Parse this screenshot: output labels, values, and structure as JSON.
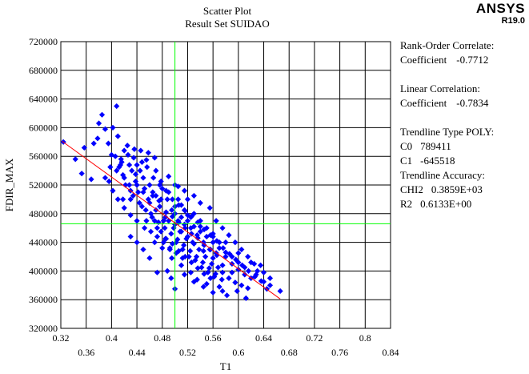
{
  "header": {
    "title": "Scatter Plot",
    "subtitle": "Result Set SUIDAO",
    "logo": "ANSYS",
    "version": "R19.0"
  },
  "stats": {
    "rank_title": "Rank-Order Correlate:",
    "rank_label": "Coefficient",
    "rank_value": "-0.7712",
    "linear_title": "Linear Correlation:",
    "linear_label": "Coefficient",
    "linear_value": "-0.7834",
    "trend_title": "Trendline Type POLY:",
    "c0_label": "C0",
    "c0_value": "789411",
    "c1_label": "C1",
    "c1_value": "-645518",
    "accuracy_title": "Trendline Accuracy:",
    "chi2_label": "CHI2",
    "chi2_value": "0.3859E+03",
    "r2_label": "R2",
    "r2_value": "0.6133E+00"
  },
  "chart_data": {
    "type": "scatter",
    "xlabel": "T1",
    "ylabel": "FDIR_MAX",
    "xlim": [
      0.32,
      0.84
    ],
    "ylim": [
      320000,
      720000
    ],
    "x_ticks_upper": [
      0.32,
      0.4,
      0.48,
      0.56,
      0.64,
      0.72,
      0.8
    ],
    "x_ticks_lower": [
      0.36,
      0.44,
      0.52,
      0.6,
      0.68,
      0.76,
      0.84
    ],
    "y_ticks": [
      320000,
      360000,
      400000,
      440000,
      480000,
      520000,
      560000,
      600000,
      640000,
      680000,
      720000
    ],
    "grid": true,
    "marker_color": "#0000ff",
    "trend_color": "#ff0000",
    "mean_line_color": "#00ff00",
    "mean_x": 0.5,
    "mean_y": 466000,
    "trendline": {
      "x": [
        0.322,
        0.666
      ],
      "y": [
        581000,
        361000
      ]
    },
    "points": [
      [
        0.324,
        580000
      ],
      [
        0.343,
        556000
      ],
      [
        0.357,
        572000
      ],
      [
        0.353,
        536000
      ],
      [
        0.368,
        528000
      ],
      [
        0.372,
        578000
      ],
      [
        0.378,
        585000
      ],
      [
        0.38,
        606000
      ],
      [
        0.385,
        618000
      ],
      [
        0.39,
        598000
      ],
      [
        0.395,
        578000
      ],
      [
        0.4,
        562000
      ],
      [
        0.402,
        600000
      ],
      [
        0.408,
        630000
      ],
      [
        0.41,
        588000
      ],
      [
        0.412,
        545000
      ],
      [
        0.415,
        556000
      ],
      [
        0.418,
        534000
      ],
      [
        0.42,
        568000
      ],
      [
        0.422,
        520000
      ],
      [
        0.425,
        575000
      ],
      [
        0.428,
        548000
      ],
      [
        0.43,
        500000
      ],
      [
        0.432,
        540000
      ],
      [
        0.435,
        558000
      ],
      [
        0.438,
        525000
      ],
      [
        0.44,
        548000
      ],
      [
        0.442,
        510000
      ],
      [
        0.445,
        540000
      ],
      [
        0.448,
        490000
      ],
      [
        0.45,
        530000
      ],
      [
        0.452,
        515000
      ],
      [
        0.455,
        555000
      ],
      [
        0.458,
        500000
      ],
      [
        0.46,
        520000
      ],
      [
        0.462,
        480000
      ],
      [
        0.465,
        510000
      ],
      [
        0.468,
        470000
      ],
      [
        0.47,
        540000
      ],
      [
        0.472,
        460000
      ],
      [
        0.475,
        498000
      ],
      [
        0.478,
        455000
      ],
      [
        0.48,
        515000
      ],
      [
        0.482,
        470000
      ],
      [
        0.485,
        445000
      ],
      [
        0.488,
        500000
      ],
      [
        0.49,
        470000
      ],
      [
        0.492,
        430000
      ],
      [
        0.495,
        485000
      ],
      [
        0.498,
        460000
      ],
      [
        0.5,
        520000
      ],
      [
        0.502,
        440000
      ],
      [
        0.505,
        470000
      ],
      [
        0.508,
        455000
      ],
      [
        0.51,
        492000
      ],
      [
        0.512,
        430000
      ],
      [
        0.515,
        465000
      ],
      [
        0.518,
        445000
      ],
      [
        0.52,
        500000
      ],
      [
        0.522,
        420000
      ],
      [
        0.525,
        460000
      ],
      [
        0.528,
        440000
      ],
      [
        0.53,
        480000
      ],
      [
        0.532,
        415000
      ],
      [
        0.535,
        450000
      ],
      [
        0.538,
        430000
      ],
      [
        0.54,
        470000
      ],
      [
        0.542,
        405000
      ],
      [
        0.545,
        440000
      ],
      [
        0.548,
        420000
      ],
      [
        0.55,
        460000
      ],
      [
        0.552,
        398000
      ],
      [
        0.555,
        430000
      ],
      [
        0.558,
        410000
      ],
      [
        0.56,
        448000
      ],
      [
        0.562,
        392000
      ],
      [
        0.565,
        425000
      ],
      [
        0.568,
        405000
      ],
      [
        0.57,
        440000
      ],
      [
        0.575,
        398000
      ],
      [
        0.58,
        420000
      ],
      [
        0.585,
        390000
      ],
      [
        0.59,
        410000
      ],
      [
        0.595,
        384000
      ],
      [
        0.6,
        402000
      ],
      [
        0.605,
        380000
      ],
      [
        0.61,
        395000
      ],
      [
        0.615,
        376000
      ],
      [
        0.62,
        390000
      ],
      [
        0.628,
        395000
      ],
      [
        0.635,
        408000
      ],
      [
        0.64,
        385000
      ],
      [
        0.645,
        375000
      ],
      [
        0.65,
        390000
      ],
      [
        0.666,
        372000
      ],
      [
        0.612,
        362000
      ],
      [
        0.598,
        372000
      ],
      [
        0.582,
        366000
      ],
      [
        0.57,
        378000
      ],
      [
        0.55,
        382000
      ],
      [
        0.535,
        388000
      ],
      [
        0.488,
        400000
      ],
      [
        0.472,
        398000
      ],
      [
        0.46,
        418000
      ],
      [
        0.45,
        430000
      ],
      [
        0.44,
        440000
      ],
      [
        0.43,
        448000
      ],
      [
        0.455,
        470000
      ],
      [
        0.465,
        505000
      ],
      [
        0.478,
        525000
      ],
      [
        0.49,
        532000
      ],
      [
        0.505,
        518000
      ],
      [
        0.515,
        512000
      ],
      [
        0.53,
        505000
      ],
      [
        0.54,
        495000
      ],
      [
        0.555,
        488000
      ],
      [
        0.565,
        470000
      ],
      [
        0.575,
        460000
      ],
      [
        0.585,
        450000
      ],
      [
        0.595,
        440000
      ],
      [
        0.605,
        430000
      ],
      [
        0.615,
        420000
      ],
      [
        0.625,
        410000
      ],
      [
        0.468,
        440000
      ],
      [
        0.48,
        432000
      ],
      [
        0.495,
        418000
      ],
      [
        0.51,
        408000
      ],
      [
        0.525,
        398000
      ],
      [
        0.418,
        500000
      ],
      [
        0.428,
        520000
      ],
      [
        0.438,
        535000
      ],
      [
        0.448,
        552000
      ],
      [
        0.458,
        565000
      ],
      [
        0.468,
        558000
      ],
      [
        0.47,
        485000
      ],
      [
        0.485,
        475000
      ],
      [
        0.5,
        465000
      ],
      [
        0.51,
        455000
      ],
      [
        0.52,
        448000
      ],
      [
        0.53,
        438000
      ],
      [
        0.545,
        428000
      ],
      [
        0.56,
        418000
      ],
      [
        0.575,
        408000
      ],
      [
        0.59,
        398000
      ],
      [
        0.476,
        490000
      ],
      [
        0.486,
        482000
      ],
      [
        0.496,
        476000
      ],
      [
        0.506,
        468000
      ],
      [
        0.516,
        460000
      ],
      [
        0.526,
        452000
      ],
      [
        0.536,
        446000
      ],
      [
        0.546,
        436000
      ],
      [
        0.556,
        430000
      ],
      [
        0.566,
        422000
      ],
      [
        0.46,
        495000
      ],
      [
        0.47,
        505000
      ],
      [
        0.45,
        510000
      ],
      [
        0.44,
        520000
      ],
      [
        0.434,
        505000
      ],
      [
        0.444,
        495000
      ],
      [
        0.454,
        485000
      ],
      [
        0.464,
        475000
      ],
      [
        0.474,
        468000
      ],
      [
        0.484,
        460000
      ],
      [
        0.494,
        452000
      ],
      [
        0.504,
        444000
      ],
      [
        0.514,
        436000
      ],
      [
        0.524,
        428000
      ],
      [
        0.534,
        420000
      ],
      [
        0.544,
        412000
      ],
      [
        0.554,
        404000
      ],
      [
        0.564,
        396000
      ],
      [
        0.574,
        388000
      ],
      [
        0.43,
        512000
      ],
      [
        0.42,
        530000
      ],
      [
        0.414,
        548000
      ],
      [
        0.406,
        560000
      ],
      [
        0.398,
        545000
      ],
      [
        0.39,
        530000
      ],
      [
        0.5,
        490000
      ],
      [
        0.52,
        478000
      ],
      [
        0.54,
        462000
      ],
      [
        0.56,
        452000
      ],
      [
        0.58,
        440000
      ],
      [
        0.6,
        425000
      ],
      [
        0.62,
        412000
      ],
      [
        0.63,
        400000
      ],
      [
        0.64,
        398000
      ],
      [
        0.65,
        380000
      ],
      [
        0.505,
        500000
      ],
      [
        0.515,
        485000
      ],
      [
        0.525,
        475000
      ],
      [
        0.49,
        510000
      ],
      [
        0.478,
        500000
      ],
      [
        0.5,
        480000
      ],
      [
        0.51,
        475000
      ],
      [
        0.52,
        470000
      ],
      [
        0.53,
        462000
      ],
      [
        0.54,
        455000
      ],
      [
        0.55,
        448000
      ],
      [
        0.56,
        440000
      ],
      [
        0.57,
        432000
      ],
      [
        0.58,
        426000
      ],
      [
        0.59,
        420000
      ],
      [
        0.6,
        412000
      ],
      [
        0.61,
        405000
      ],
      [
        0.486,
        445000
      ],
      [
        0.496,
        438000
      ],
      [
        0.506,
        428000
      ],
      [
        0.516,
        420000
      ],
      [
        0.526,
        412000
      ],
      [
        0.536,
        404000
      ],
      [
        0.546,
        396000
      ],
      [
        0.556,
        390000
      ],
      [
        0.452,
        460000
      ],
      [
        0.462,
        455000
      ],
      [
        0.472,
        448000
      ],
      [
        0.482,
        440000
      ],
      [
        0.492,
        432000
      ],
      [
        0.502,
        425000
      ],
      [
        0.512,
        418000
      ],
      [
        0.44,
        470000
      ],
      [
        0.43,
        478000
      ],
      [
        0.42,
        488000
      ],
      [
        0.41,
        500000
      ],
      [
        0.402,
        512000
      ],
      [
        0.396,
        525000
      ],
      [
        0.408,
        540000
      ],
      [
        0.416,
        552000
      ],
      [
        0.426,
        562000
      ],
      [
        0.436,
        570000
      ],
      [
        0.446,
        568000
      ],
      [
        0.456,
        545000
      ],
      [
        0.466,
        530000
      ],
      [
        0.476,
        520000
      ],
      [
        0.486,
        512000
      ],
      [
        0.496,
        500000
      ],
      [
        0.506,
        492000
      ],
      [
        0.516,
        484000
      ],
      [
        0.526,
        476000
      ],
      [
        0.536,
        468000
      ],
      [
        0.546,
        458000
      ],
      [
        0.556,
        450000
      ],
      [
        0.566,
        442000
      ],
      [
        0.576,
        432000
      ],
      [
        0.586,
        424000
      ],
      [
        0.596,
        416000
      ],
      [
        0.606,
        408000
      ],
      [
        0.616,
        400000
      ],
      [
        0.626,
        392000
      ],
      [
        0.636,
        386000
      ],
      [
        0.494,
        390000
      ],
      [
        0.5,
        375000
      ],
      [
        0.515,
        395000
      ],
      [
        0.53,
        385000
      ],
      [
        0.545,
        378000
      ],
      [
        0.56,
        370000
      ],
      [
        0.575,
        372000
      ]
    ]
  }
}
